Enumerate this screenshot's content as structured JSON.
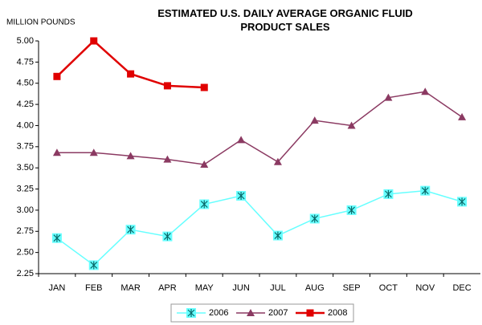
{
  "chart_data": {
    "type": "line",
    "title": "ESTIMATED U.S. DAILY AVERAGE ORGANIC FLUID PRODUCT SALES",
    "y_label": "MILLION POUNDS",
    "categories": [
      "JAN",
      "FEB",
      "MAR",
      "APR",
      "MAY",
      "JUN",
      "JUL",
      "AUG",
      "SEP",
      "OCT",
      "NOV",
      "DEC"
    ],
    "series": [
      {
        "name": "2006",
        "color": "#66ffff",
        "marker": "star",
        "values": [
          2.67,
          2.35,
          2.77,
          2.69,
          3.07,
          3.17,
          2.7,
          2.9,
          3.0,
          3.19,
          3.23,
          3.1
        ]
      },
      {
        "name": "2007",
        "color": "#8b3a62",
        "marker": "triangle",
        "values": [
          3.68,
          3.68,
          3.64,
          3.6,
          3.54,
          3.83,
          3.57,
          4.06,
          4.0,
          4.33,
          4.4,
          4.1
        ]
      },
      {
        "name": "2008",
        "color": "#e00000",
        "marker": "square",
        "values": [
          4.58,
          5.0,
          4.61,
          4.47,
          4.45,
          null,
          null,
          null,
          null,
          null,
          null,
          null
        ]
      }
    ],
    "ylim": [
      2.25,
      5.0
    ],
    "yticks": [
      {
        "value": 2.25,
        "label": "2.25"
      },
      {
        "value": 2.5,
        "label": "2.50"
      },
      {
        "value": 2.75,
        "label": "2.75"
      },
      {
        "value": 3.0,
        "label": "3.00"
      },
      {
        "value": 3.25,
        "label": "3.25"
      },
      {
        "value": 3.5,
        "label": "3.50"
      },
      {
        "value": 3.75,
        "label": "3.75"
      },
      {
        "value": 4.0,
        "label": "4.00"
      },
      {
        "value": 4.25,
        "label": "4.25"
      },
      {
        "value": 4.5,
        "label": "4.50"
      },
      {
        "value": 4.75,
        "label": "4.75"
      },
      {
        "value": 5.0,
        "label": "5.00"
      }
    ],
    "grid": false,
    "legend": "bottom"
  }
}
